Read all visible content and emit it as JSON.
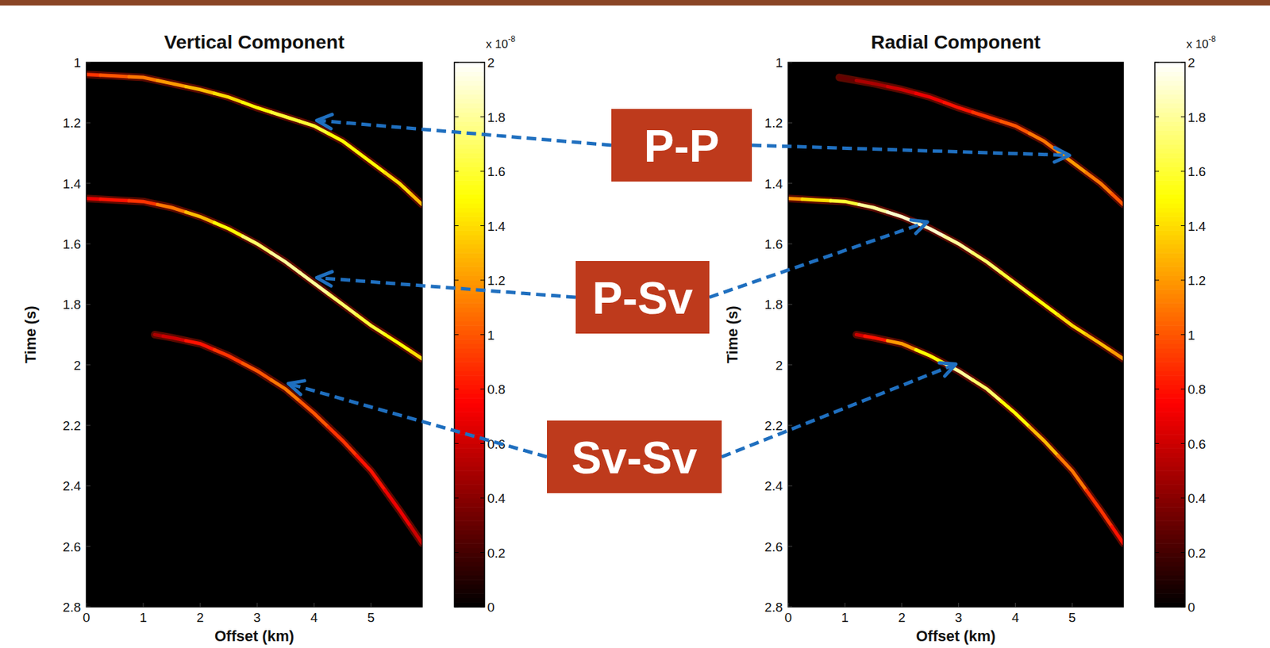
{
  "chart_data": [
    {
      "type": "seismic_gather",
      "title": "Vertical Component",
      "x_label": "Offset (km)",
      "y_label": "Time (s)",
      "xlim": [
        0,
        5.9
      ],
      "xticks": [
        0,
        1,
        2,
        3,
        4,
        5
      ],
      "ylim": [
        2.8,
        1
      ],
      "yticks": [
        1,
        1.2,
        1.4,
        1.6,
        1.8,
        2,
        2.2,
        2.4,
        2.6,
        2.8
      ],
      "clim": [
        0,
        2
      ],
      "cticks": [
        0,
        0.2,
        0.4,
        0.6,
        0.8,
        1,
        1.2,
        1.4,
        1.6,
        1.8,
        2
      ],
      "colorbar_label": "x 10",
      "colorbar_exponent": "-8",
      "series": [
        {
          "name": "P-P",
          "x": [
            0,
            0.5,
            1,
            1.5,
            2,
            2.5,
            3,
            3.5,
            4,
            4.5,
            5,
            5.5,
            5.9
          ],
          "values": [
            1.04,
            1.045,
            1.05,
            1.07,
            1.09,
            1.115,
            1.15,
            1.18,
            1.21,
            1.26,
            1.33,
            1.4,
            1.47
          ],
          "amplitudes": [
            0.9,
            1.0,
            1.1,
            1.2,
            1.3,
            1.4,
            1.5,
            1.6,
            1.6,
            1.5,
            1.5,
            1.4,
            1.3
          ]
        },
        {
          "name": "P-Sv",
          "x": [
            0,
            0.5,
            1,
            1.5,
            2,
            2.5,
            3,
            3.5,
            4,
            4.5,
            5,
            5.5,
            5.9
          ],
          "values": [
            1.45,
            1.455,
            1.46,
            1.48,
            1.51,
            1.55,
            1.6,
            1.66,
            1.73,
            1.8,
            1.87,
            1.93,
            1.98
          ],
          "amplitudes": [
            0.7,
            0.8,
            0.9,
            1.1,
            1.3,
            1.5,
            1.7,
            1.8,
            1.8,
            1.7,
            1.6,
            1.5,
            1.4
          ]
        },
        {
          "name": "Sv-Sv",
          "x": [
            1.2,
            1.5,
            2,
            2.5,
            3,
            3.5,
            4,
            4.5,
            5,
            5.5,
            5.9
          ],
          "values": [
            1.9,
            1.91,
            1.93,
            1.97,
            2.02,
            2.08,
            2.16,
            2.25,
            2.35,
            2.48,
            2.59
          ],
          "amplitudes": [
            0.5,
            0.6,
            0.8,
            0.9,
            1.0,
            1.1,
            1.0,
            0.9,
            0.8,
            0.7,
            0.6
          ]
        }
      ]
    },
    {
      "type": "seismic_gather",
      "title": "Radial Component",
      "x_label": "Offset (km)",
      "y_label": "Time (s)",
      "xlim": [
        0,
        5.9
      ],
      "xticks": [
        0,
        1,
        2,
        3,
        4,
        5
      ],
      "ylim": [
        2.8,
        1
      ],
      "yticks": [
        1,
        1.2,
        1.4,
        1.6,
        1.8,
        2,
        2.2,
        2.4,
        2.6,
        2.8
      ],
      "clim": [
        0,
        2
      ],
      "cticks": [
        0,
        0.2,
        0.4,
        0.6,
        0.8,
        1,
        1.2,
        1.4,
        1.6,
        1.8,
        2
      ],
      "colorbar_label": "x 10",
      "colorbar_exponent": "-8",
      "series": [
        {
          "name": "P-P",
          "x": [
            0.9,
            1.5,
            2,
            2.5,
            3,
            3.5,
            4,
            4.5,
            5,
            5.5,
            5.9
          ],
          "values": [
            1.05,
            1.07,
            1.09,
            1.115,
            1.15,
            1.18,
            1.21,
            1.26,
            1.33,
            1.4,
            1.47
          ],
          "amplitudes": [
            0.3,
            0.5,
            0.6,
            0.7,
            0.8,
            0.9,
            1.0,
            1.1,
            1.2,
            1.1,
            1.0
          ]
        },
        {
          "name": "P-Sv",
          "x": [
            0,
            0.5,
            1,
            1.5,
            2,
            2.5,
            3,
            3.5,
            4,
            4.5,
            5,
            5.5,
            5.9
          ],
          "values": [
            1.45,
            1.455,
            1.46,
            1.48,
            1.51,
            1.55,
            1.6,
            1.66,
            1.73,
            1.8,
            1.87,
            1.93,
            1.98
          ],
          "amplitudes": [
            1.2,
            1.4,
            1.6,
            1.8,
            1.9,
            1.9,
            1.8,
            1.7,
            1.6,
            1.5,
            1.4,
            1.3,
            1.2
          ]
        },
        {
          "name": "Sv-Sv",
          "x": [
            1.2,
            1.5,
            2,
            2.5,
            3,
            3.5,
            4,
            4.5,
            5,
            5.5,
            5.9
          ],
          "values": [
            1.9,
            1.91,
            1.93,
            1.97,
            2.02,
            2.08,
            2.16,
            2.25,
            2.35,
            2.48,
            2.59
          ],
          "amplitudes": [
            0.6,
            0.8,
            1.2,
            1.5,
            1.8,
            1.7,
            1.5,
            1.3,
            1.1,
            0.9,
            0.8
          ]
        }
      ]
    }
  ]
}
